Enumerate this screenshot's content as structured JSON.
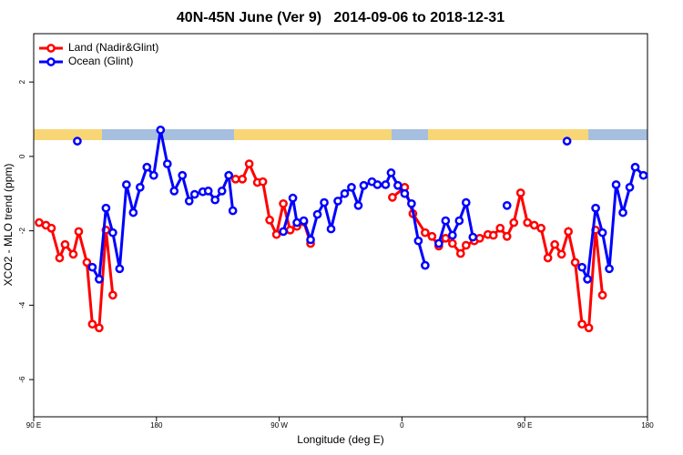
{
  "chart_data": {
    "type": "line",
    "title": "40N-45N June (Ver 9)   2014-09-06 to 2018-12-31",
    "x_label": "Longitude (deg E)",
    "y_label": "XCO2 - MLO trend (ppm)",
    "xlim": [
      90,
      540
    ],
    "ylim": [
      -7,
      3.3
    ],
    "xticks": [
      {
        "value": 90,
        "label": "90 E"
      },
      180,
      {
        "value": 270,
        "label": "90 W"
      },
      {
        "value": 360,
        "label": "0"
      },
      {
        "value": 450,
        "label": "90 E"
      },
      {
        "value": 540,
        "label": "180"
      }
    ],
    "yticks": [
      -6,
      -4,
      -2,
      0,
      2
    ],
    "legend": "top-left",
    "series": [
      {
        "name": "Land (Nadir&Glint)",
        "color": "#ff0000",
        "x": [
          94,
          99,
          103,
          109,
          113,
          119,
          123,
          129,
          133,
          138,
          143,
          148,
          null,
          238,
          243,
          248,
          254,
          258,
          263,
          268,
          273,
          278,
          283,
          288,
          293,
          null,
          353,
          362,
          368,
          377,
          382,
          387,
          392,
          397,
          403,
          407,
          413,
          417,
          423,
          427,
          432,
          437,
          442,
          447,
          452,
          457,
          462,
          467,
          472,
          477,
          482,
          487,
          492,
          497,
          502,
          507
        ],
        "values": [
          -1.78,
          -1.85,
          -1.93,
          -2.73,
          -2.37,
          -2.63,
          -2.02,
          -2.85,
          -4.51,
          -4.61,
          -1.98,
          -3.73,
          null,
          -0.61,
          -0.61,
          -0.2,
          -0.7,
          -0.68,
          -1.71,
          -2.1,
          -1.27,
          -1.98,
          -1.88,
          -1.76,
          -2.34,
          null,
          -1.1,
          -0.83,
          -1.54,
          -2.05,
          -2.15,
          -2.41,
          -2.2,
          -2.34,
          -2.61,
          -2.39,
          -2.27,
          -2.2,
          -2.1,
          -2.12,
          -1.93,
          -2.15,
          -1.78,
          -0.98,
          -1.78,
          -1.85,
          -1.93,
          -2.73,
          -2.37,
          -2.63,
          -2.02,
          -2.85,
          -4.51,
          -4.61,
          -1.98,
          -3.73
        ]
      },
      {
        "name": "Ocean (Glint)",
        "color": "#0000ff",
        "x": [
          122,
          null,
          133,
          138,
          143,
          148,
          153,
          158,
          163,
          168,
          173,
          178,
          183,
          188,
          193,
          199,
          204,
          208,
          214,
          218,
          223,
          228,
          233,
          236,
          null,
          273,
          280,
          283,
          288,
          293,
          298,
          303,
          308,
          313,
          318,
          323,
          328,
          332,
          338,
          342,
          348,
          352,
          357,
          362,
          367,
          372,
          377,
          null,
          387,
          392,
          397,
          402,
          407,
          412,
          null,
          437,
          null,
          481,
          null,
          492,
          496,
          502,
          507,
          512,
          517,
          522,
          527,
          531,
          537
        ],
        "values": [
          0.41,
          null,
          -2.98,
          -3.3,
          -1.39,
          -2.05,
          -3.02,
          -0.76,
          -1.51,
          -0.83,
          -0.29,
          -0.51,
          0.71,
          -0.2,
          -0.93,
          -0.51,
          -1.2,
          -1.02,
          -0.95,
          -0.93,
          -1.17,
          -0.93,
          -0.51,
          -1.46,
          null,
          -2.02,
          -1.12,
          -1.78,
          -1.73,
          -2.24,
          -1.56,
          -1.24,
          -1.95,
          -1.2,
          -1.0,
          -0.83,
          -1.32,
          -0.78,
          -0.68,
          -0.76,
          -0.76,
          -0.44,
          -0.78,
          -1.0,
          -1.27,
          -2.27,
          -2.93,
          null,
          -2.34,
          -1.73,
          -2.12,
          -1.73,
          -1.24,
          -2.17,
          null,
          -1.32,
          null,
          0.41,
          null,
          -2.98,
          -3.3,
          -1.39,
          -2.05,
          -3.02,
          -0.76,
          -1.51,
          -0.83,
          -0.29,
          -0.51
        ]
      }
    ]
  }
}
